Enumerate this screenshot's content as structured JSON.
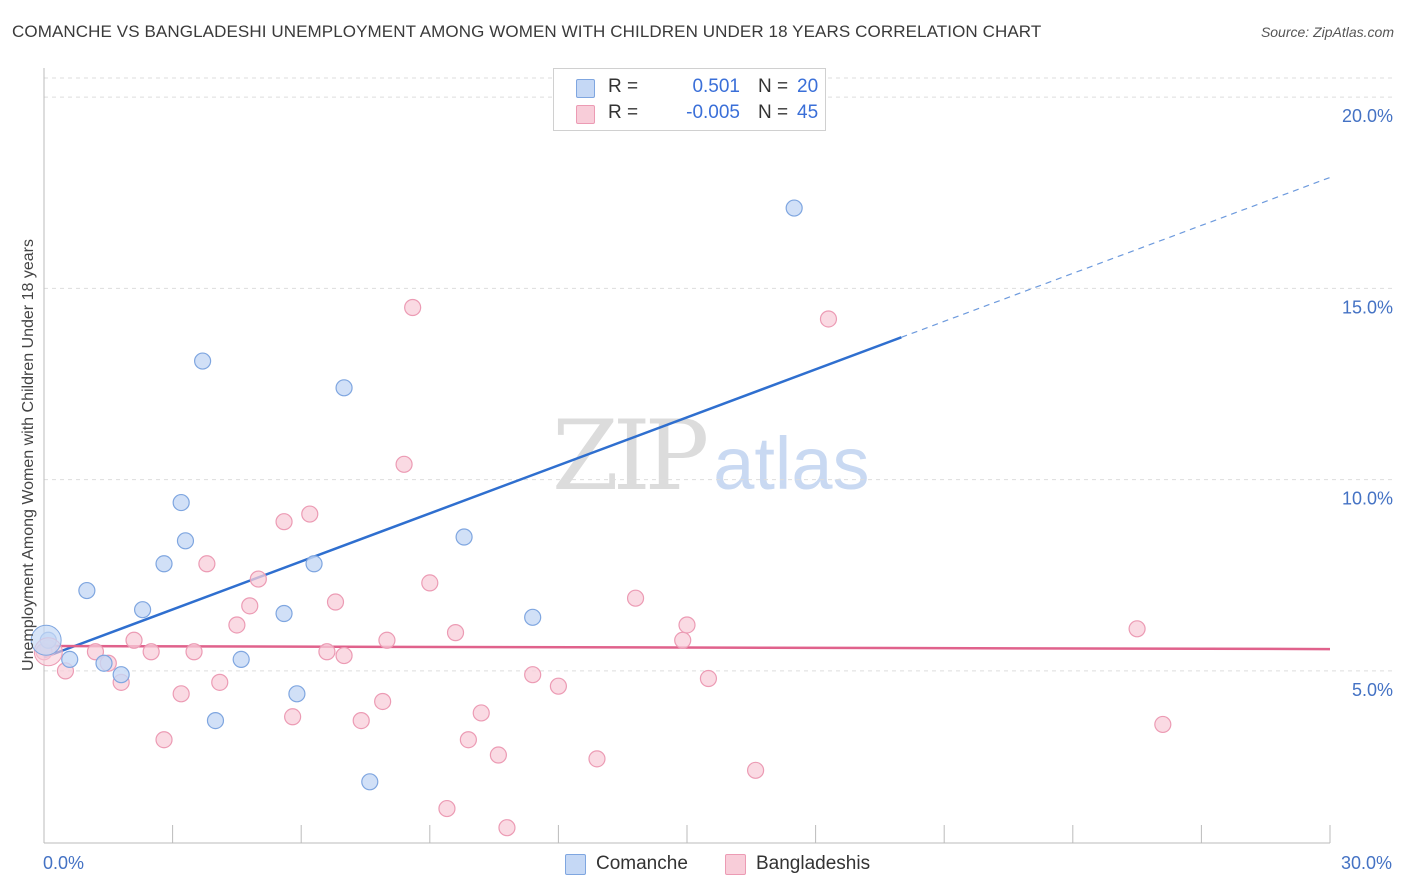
{
  "header": {
    "title": "COMANCHE VS BANGLADESHI UNEMPLOYMENT AMONG WOMEN WITH CHILDREN UNDER 18 YEARS CORRELATION CHART",
    "source": "Source: ZipAtlas.com"
  },
  "watermark": {
    "zip": "ZIP",
    "atlas": "atlas"
  },
  "legend": {
    "rows": [
      {
        "r_label": "R =",
        "r_value": "0.501",
        "n_label": "N =",
        "n_value": "20"
      },
      {
        "r_label": "R =",
        "r_value": "-0.005",
        "n_label": "N =",
        "n_value": "45"
      }
    ]
  },
  "bottom_legend": {
    "comanche": "Comanche",
    "bangladeshis": "Bangladeshis"
  },
  "chart_data": {
    "type": "scatter",
    "title": "COMANCHE VS BANGLADESHI UNEMPLOYMENT AMONG WOMEN WITH CHILDREN UNDER 18 YEARS CORRELATION CHART",
    "xlabel": "",
    "ylabel": "Unemployment Among Women with Children Under 18 years",
    "xlim": [
      0,
      30
    ],
    "ylim": [
      0.5,
      20.5
    ],
    "x_tick_labels": [
      {
        "value": 0,
        "label": "0.0%"
      },
      {
        "value": 30,
        "label": "30.0%"
      }
    ],
    "y_ticks": [
      {
        "value": 5,
        "label": "5.0%"
      },
      {
        "value": 10,
        "label": "10.0%"
      },
      {
        "value": 15,
        "label": "15.0%"
      },
      {
        "value": 20,
        "label": "20.0%"
      }
    ],
    "grid": "horizontal dashed",
    "legend_position": "top-center",
    "colors": {
      "comanche_fill": "#c5d8f5",
      "comanche_stroke": "#7fa6e0",
      "comanche_line": "#2f6fcf",
      "bangladeshi_fill": "#f8cdd9",
      "bangladeshi_stroke": "#ec9bb4",
      "bangladeshi_line": "#e0628c"
    },
    "series": [
      {
        "name": "Comanche",
        "r": 0.501,
        "n": 20,
        "points": [
          [
            0.1,
            5.8
          ],
          [
            0.6,
            5.3
          ],
          [
            1.0,
            7.1
          ],
          [
            1.4,
            5.2
          ],
          [
            1.8,
            4.9
          ],
          [
            2.3,
            6.6
          ],
          [
            2.8,
            7.8
          ],
          [
            3.2,
            9.4
          ],
          [
            3.3,
            8.4
          ],
          [
            3.7,
            13.1
          ],
          [
            4.0,
            3.7
          ],
          [
            4.6,
            5.3
          ],
          [
            5.6,
            6.5
          ],
          [
            5.9,
            4.4
          ],
          [
            6.3,
            7.8
          ],
          [
            7.0,
            12.4
          ],
          [
            7.6,
            2.1
          ],
          [
            9.8,
            8.5
          ],
          [
            11.4,
            6.4
          ],
          [
            17.5,
            17.1
          ]
        ],
        "trend": {
          "x": [
            0,
            20
          ],
          "y": [
            5.35,
            13.72
          ],
          "dashed_extension_to": [
            30,
            17.9
          ]
        }
      },
      {
        "name": "Bangladeshis",
        "r": -0.005,
        "n": 45,
        "points": [
          [
            0.1,
            5.6
          ],
          [
            0.5,
            5.0
          ],
          [
            1.2,
            5.5
          ],
          [
            1.5,
            5.2
          ],
          [
            1.8,
            4.7
          ],
          [
            2.1,
            5.8
          ],
          [
            2.5,
            5.5
          ],
          [
            2.8,
            3.2
          ],
          [
            3.2,
            4.4
          ],
          [
            3.5,
            5.5
          ],
          [
            3.8,
            7.8
          ],
          [
            4.1,
            4.7
          ],
          [
            4.5,
            6.2
          ],
          [
            4.8,
            6.7
          ],
          [
            5.0,
            7.4
          ],
          [
            5.6,
            8.9
          ],
          [
            5.8,
            3.8
          ],
          [
            6.2,
            9.1
          ],
          [
            6.6,
            5.5
          ],
          [
            6.8,
            6.8
          ],
          [
            7.0,
            5.4
          ],
          [
            7.4,
            3.7
          ],
          [
            7.9,
            4.2
          ],
          [
            8.0,
            5.8
          ],
          [
            8.4,
            10.4
          ],
          [
            8.6,
            14.5
          ],
          [
            9.0,
            7.3
          ],
          [
            9.4,
            1.4
          ],
          [
            9.6,
            6.0
          ],
          [
            9.9,
            3.2
          ],
          [
            10.2,
            3.9
          ],
          [
            10.6,
            2.8
          ],
          [
            10.8,
            0.9
          ],
          [
            11.4,
            4.9
          ],
          [
            12.0,
            4.6
          ],
          [
            12.9,
            2.7
          ],
          [
            13.8,
            6.9
          ],
          [
            14.9,
            5.8
          ],
          [
            15.0,
            6.2
          ],
          [
            15.5,
            4.8
          ],
          [
            16.6,
            2.4
          ],
          [
            18.3,
            14.2
          ],
          [
            25.5,
            6.1
          ],
          [
            26.1,
            3.6
          ],
          [
            0.0,
            5.5
          ]
        ],
        "trend": {
          "x": [
            0,
            30
          ],
          "y": [
            5.65,
            5.57
          ]
        }
      }
    ]
  }
}
